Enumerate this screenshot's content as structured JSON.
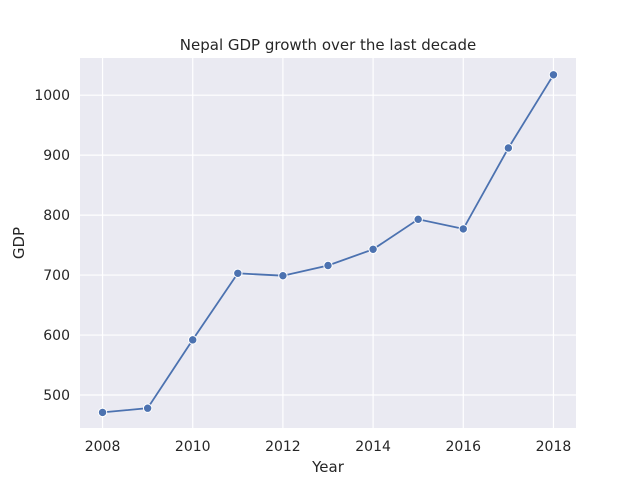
{
  "chart_data": {
    "type": "line",
    "title": "Nepal GDP growth over the last decade",
    "xlabel": "Year",
    "ylabel": "GDP",
    "x": [
      2008,
      2009,
      2010,
      2011,
      2012,
      2013,
      2014,
      2015,
      2016,
      2017,
      2018
    ],
    "series": [
      {
        "values": [
          471,
          478,
          592,
          703,
          699,
          716,
          743,
          793,
          777,
          912,
          1034
        ]
      }
    ],
    "xlim": [
      2007.5,
      2018.5
    ],
    "ylim": [
      445,
      1062
    ],
    "xticks": [
      "2008",
      "2010",
      "2012",
      "2014",
      "2016",
      "2018"
    ],
    "yticks": [
      "500",
      "600",
      "700",
      "800",
      "900",
      "1000"
    ],
    "grid": true,
    "colors": {
      "line": "#4c72b0",
      "plot_background": "#eaeaf2",
      "grid": "#ffffff"
    }
  }
}
